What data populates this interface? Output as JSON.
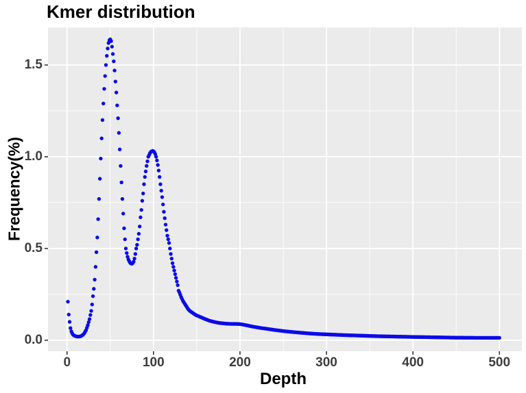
{
  "chart_data": {
    "type": "scatter",
    "title": "Kmer distribution",
    "xlabel": "Depth",
    "ylabel": "Frequency(%)",
    "x_ticks": [
      0,
      100,
      200,
      300,
      400,
      500
    ],
    "y_ticks": [
      "0.0",
      "0.5",
      "1.0",
      "1.5"
    ],
    "x_minor": [
      50,
      150,
      250,
      350,
      450
    ],
    "y_minor": [
      0.25,
      0.75,
      1.25
    ],
    "xlim": [
      -22,
      526
    ],
    "ylim": [
      -0.06,
      1.705
    ],
    "grid": "on",
    "legend": "none",
    "point_color": "#0b0bea",
    "panel_bg": "#ebebeb",
    "grid_color": "#ffffff",
    "tick_color": "#333333",
    "peak1": {
      "depth": 50,
      "frequency": 1.64
    },
    "valley": {
      "depth": 75,
      "frequency": 0.417
    },
    "peak2": {
      "depth": 99,
      "frequency": 1.03
    },
    "points": [
      [
        1,
        0.21
      ],
      [
        2,
        0.14
      ],
      [
        3,
        0.1
      ],
      [
        4,
        0.066
      ],
      [
        5,
        0.048
      ],
      [
        6,
        0.037
      ],
      [
        7,
        0.03
      ],
      [
        8,
        0.026
      ],
      [
        10,
        0.022
      ],
      [
        12,
        0.02
      ],
      [
        14,
        0.02
      ],
      [
        16,
        0.022
      ],
      [
        18,
        0.028
      ],
      [
        20,
        0.038
      ],
      [
        22,
        0.055
      ],
      [
        24,
        0.082
      ],
      [
        26,
        0.115
      ],
      [
        28,
        0.16
      ],
      [
        29,
        0.195
      ],
      [
        30,
        0.24
      ],
      [
        31,
        0.28
      ],
      [
        32,
        0.33
      ],
      [
        33,
        0.4
      ],
      [
        34,
        0.48
      ],
      [
        35,
        0.56
      ],
      [
        36,
        0.66
      ],
      [
        37,
        0.77
      ],
      [
        38,
        0.88
      ],
      [
        39,
        0.99
      ],
      [
        40,
        1.1
      ],
      [
        41,
        1.2
      ],
      [
        42,
        1.29
      ],
      [
        43,
        1.37
      ],
      [
        44,
        1.44
      ],
      [
        45,
        1.5
      ],
      [
        46,
        1.55
      ],
      [
        47,
        1.59
      ],
      [
        48,
        1.62
      ],
      [
        49,
        1.635
      ],
      [
        50,
        1.64
      ],
      [
        51,
        1.63
      ],
      [
        52,
        1.6
      ],
      [
        53,
        1.56
      ],
      [
        54,
        1.52
      ],
      [
        55,
        1.47
      ],
      [
        56,
        1.41
      ],
      [
        57,
        1.35
      ],
      [
        58,
        1.28
      ],
      [
        59,
        1.21
      ],
      [
        60,
        1.13
      ],
      [
        61,
        1.04
      ],
      [
        62,
        0.95
      ],
      [
        63,
        0.86
      ],
      [
        64,
        0.77
      ],
      [
        65,
        0.69
      ],
      [
        66,
        0.61
      ],
      [
        67,
        0.55
      ],
      [
        68,
        0.5
      ],
      [
        69,
        0.475
      ],
      [
        70,
        0.455
      ],
      [
        71,
        0.44
      ],
      [
        72,
        0.43
      ],
      [
        73,
        0.422
      ],
      [
        74,
        0.418
      ],
      [
        75,
        0.417
      ],
      [
        76,
        0.42
      ],
      [
        77,
        0.428
      ],
      [
        78,
        0.445
      ],
      [
        79,
        0.47
      ],
      [
        80,
        0.5
      ],
      [
        81,
        0.52
      ],
      [
        82,
        0.55
      ],
      [
        83,
        0.58
      ],
      [
        84,
        0.62
      ],
      [
        85,
        0.67
      ],
      [
        86,
        0.71
      ],
      [
        87,
        0.76
      ],
      [
        88,
        0.8
      ],
      [
        89,
        0.85
      ],
      [
        90,
        0.89
      ],
      [
        91,
        0.92
      ],
      [
        92,
        0.95
      ],
      [
        93,
        0.975
      ],
      [
        94,
        1.0
      ],
      [
        95,
        1.01
      ],
      [
        96,
        1.02
      ],
      [
        97,
        1.027
      ],
      [
        98,
        1.03
      ],
      [
        99,
        1.032
      ],
      [
        100,
        1.03
      ],
      [
        101,
        1.025
      ],
      [
        102,
        1.015
      ],
      [
        103,
        1.0
      ],
      [
        104,
        0.98
      ],
      [
        105,
        0.955
      ],
      [
        106,
        0.925
      ],
      [
        107,
        0.89
      ],
      [
        108,
        0.85
      ],
      [
        109,
        0.815
      ],
      [
        110,
        0.78
      ],
      [
        111,
        0.74
      ],
      [
        112,
        0.7
      ],
      [
        113,
        0.665
      ],
      [
        114,
        0.63
      ],
      [
        115,
        0.6
      ],
      [
        116,
        0.57
      ],
      [
        117,
        0.55
      ],
      [
        118,
        0.53
      ],
      [
        119,
        0.5
      ],
      [
        120,
        0.47
      ],
      [
        121,
        0.445
      ],
      [
        122,
        0.42
      ],
      [
        123,
        0.4
      ],
      [
        124,
        0.38
      ],
      [
        125,
        0.36
      ],
      [
        126,
        0.34
      ],
      [
        127,
        0.32
      ],
      [
        128,
        0.3
      ],
      [
        129,
        0.27
      ],
      [
        130,
        0.26
      ],
      [
        132,
        0.235
      ],
      [
        134,
        0.215
      ],
      [
        136,
        0.2
      ],
      [
        138,
        0.185
      ],
      [
        140,
        0.17
      ],
      [
        142,
        0.16
      ],
      [
        145,
        0.15
      ],
      [
        148,
        0.14
      ],
      [
        150,
        0.135
      ],
      [
        155,
        0.125
      ],
      [
        160,
        0.115
      ],
      [
        165,
        0.106
      ],
      [
        170,
        0.1
      ],
      [
        175,
        0.095
      ],
      [
        180,
        0.092
      ],
      [
        185,
        0.09
      ],
      [
        190,
        0.089
      ],
      [
        195,
        0.089
      ],
      [
        200,
        0.088
      ],
      [
        205,
        0.084
      ],
      [
        210,
        0.079
      ],
      [
        215,
        0.074
      ],
      [
        220,
        0.07
      ],
      [
        225,
        0.066
      ],
      [
        230,
        0.063
      ],
      [
        240,
        0.056
      ],
      [
        250,
        0.05
      ],
      [
        260,
        0.045
      ],
      [
        270,
        0.041
      ],
      [
        280,
        0.037
      ],
      [
        290,
        0.034
      ],
      [
        300,
        0.032
      ],
      [
        320,
        0.028
      ],
      [
        340,
        0.025
      ],
      [
        360,
        0.022
      ],
      [
        380,
        0.02
      ],
      [
        400,
        0.018
      ],
      [
        425,
        0.016
      ],
      [
        450,
        0.014
      ],
      [
        475,
        0.013
      ],
      [
        500,
        0.013
      ]
    ]
  }
}
